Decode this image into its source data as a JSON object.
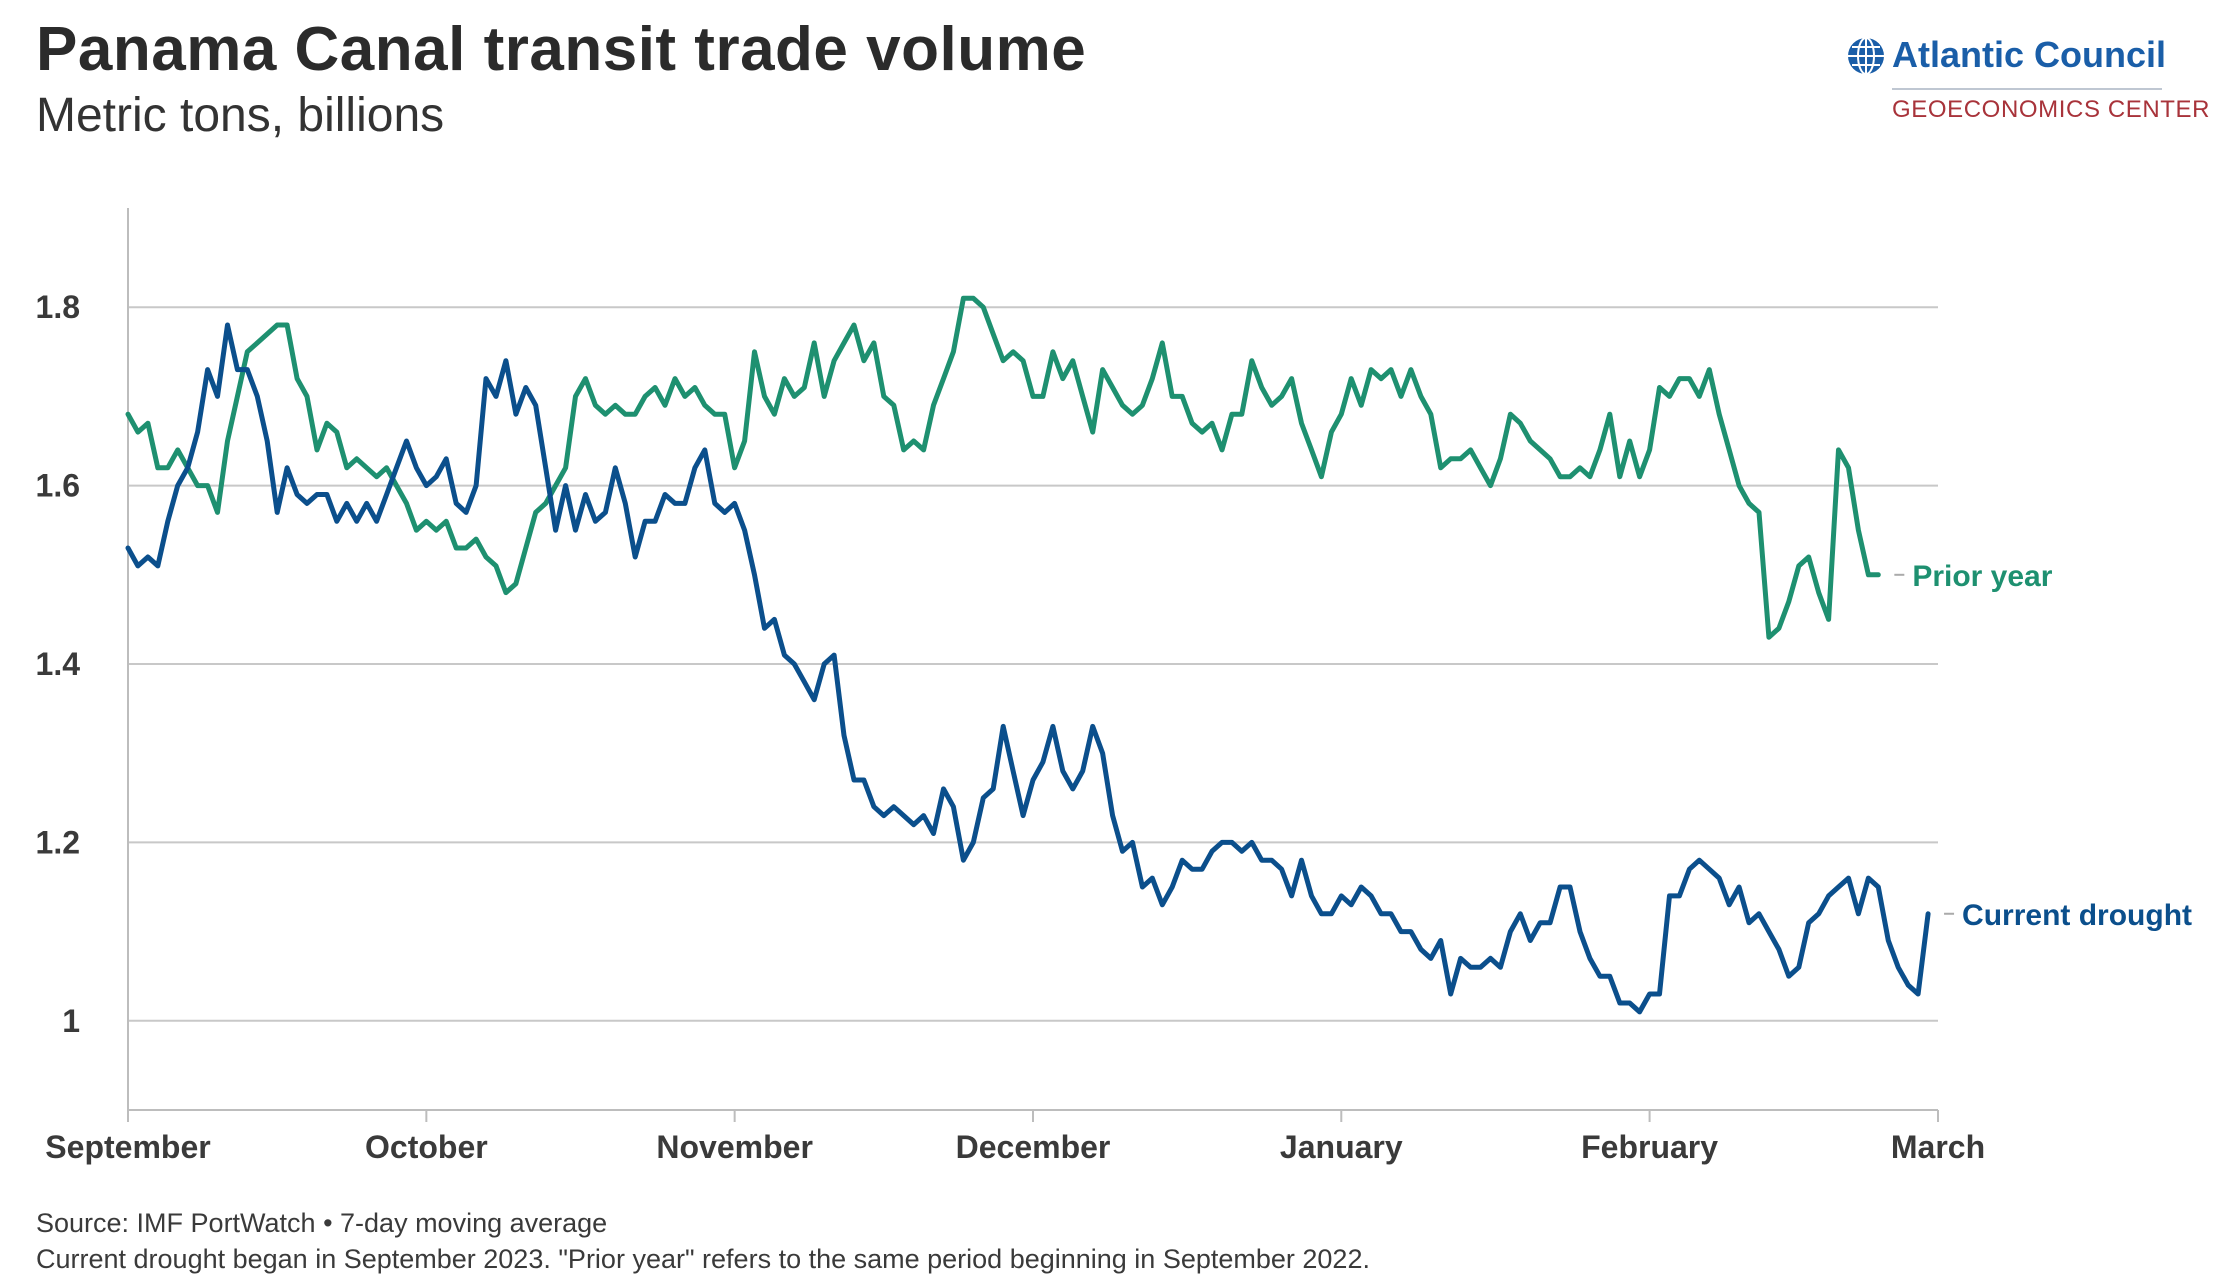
{
  "header": {
    "title": "Panama Canal transit trade volume",
    "subtitle": "Metric tons, billions"
  },
  "logo": {
    "name": "Atlantic Council",
    "center": "GEOECONOMICS CENTER",
    "icon": "globe-icon"
  },
  "footer": {
    "source": "Source: IMF PortWatch • 7-day moving average",
    "note": "Current drought began in September 2023. \"Prior year\" refers to the same period beginning in September 2022."
  },
  "colors": {
    "prior_year": "#1e9070",
    "current_drought": "#0b4f8c",
    "grid": "#c8c8c8",
    "axis": "#bdbdbd"
  },
  "chart_data": {
    "type": "line",
    "title": "Panama Canal transit trade volume",
    "ylabel": "Metric tons, billions",
    "xlabel": "",
    "ylim": [
      0.9,
      1.9
    ],
    "xlim": [
      0,
      182
    ],
    "x_ticks": [
      {
        "label": "September",
        "day": 0
      },
      {
        "label": "October",
        "day": 30
      },
      {
        "label": "November",
        "day": 61
      },
      {
        "label": "December",
        "day": 91
      },
      {
        "label": "January",
        "day": 122
      },
      {
        "label": "February",
        "day": 153
      },
      {
        "label": "March",
        "day": 182
      }
    ],
    "y_ticks": [
      {
        "label": "1",
        "value": 1.0
      },
      {
        "label": "1.2",
        "value": 1.2
      },
      {
        "label": "1.4",
        "value": 1.4
      },
      {
        "label": "1.6",
        "value": 1.6
      },
      {
        "label": "1.8",
        "value": 1.8
      }
    ],
    "grid": true,
    "series": [
      {
        "name": "Prior year",
        "color": "#1e9070",
        "x_start": 0,
        "x_step": 1,
        "values": [
          1.68,
          1.66,
          1.67,
          1.62,
          1.62,
          1.64,
          1.62,
          1.6,
          1.6,
          1.57,
          1.65,
          1.7,
          1.75,
          1.76,
          1.77,
          1.78,
          1.78,
          1.72,
          1.7,
          1.64,
          1.67,
          1.66,
          1.62,
          1.63,
          1.62,
          1.61,
          1.62,
          1.6,
          1.58,
          1.55,
          1.56,
          1.55,
          1.56,
          1.53,
          1.53,
          1.54,
          1.52,
          1.51,
          1.48,
          1.49,
          1.53,
          1.57,
          1.58,
          1.6,
          1.62,
          1.7,
          1.72,
          1.69,
          1.68,
          1.69,
          1.68,
          1.68,
          1.7,
          1.71,
          1.69,
          1.72,
          1.7,
          1.71,
          1.69,
          1.68,
          1.68,
          1.62,
          1.65,
          1.75,
          1.7,
          1.68,
          1.72,
          1.7,
          1.71,
          1.76,
          1.7,
          1.74,
          1.76,
          1.78,
          1.74,
          1.76,
          1.7,
          1.69,
          1.64,
          1.65,
          1.64,
          1.69,
          1.72,
          1.75,
          1.81,
          1.81,
          1.8,
          1.77,
          1.74,
          1.75,
          1.74,
          1.7,
          1.7,
          1.75,
          1.72,
          1.74,
          1.7,
          1.66,
          1.73,
          1.71,
          1.69,
          1.68,
          1.69,
          1.72,
          1.76,
          1.7,
          1.7,
          1.67,
          1.66,
          1.67,
          1.64,
          1.68,
          1.68,
          1.74,
          1.71,
          1.69,
          1.7,
          1.72,
          1.67,
          1.64,
          1.61,
          1.66,
          1.68,
          1.72,
          1.69,
          1.73,
          1.72,
          1.73,
          1.7,
          1.73,
          1.7,
          1.68,
          1.62,
          1.63,
          1.63,
          1.64,
          1.62,
          1.6,
          1.63,
          1.68,
          1.67,
          1.65,
          1.64,
          1.63,
          1.61,
          1.61,
          1.62,
          1.61,
          1.64,
          1.68,
          1.61,
          1.65,
          1.61,
          1.64,
          1.71,
          1.7,
          1.72,
          1.72,
          1.7,
          1.73,
          1.68,
          1.64,
          1.6,
          1.58,
          1.57,
          1.43,
          1.44,
          1.47,
          1.51,
          1.52,
          1.48,
          1.45,
          1.64,
          1.62,
          1.55,
          1.5,
          1.5
        ]
      },
      {
        "name": "Current drought",
        "color": "#0b4f8c",
        "x_start": 0,
        "x_step": 1,
        "values": [
          1.53,
          1.51,
          1.52,
          1.51,
          1.56,
          1.6,
          1.62,
          1.66,
          1.73,
          1.7,
          1.78,
          1.73,
          1.73,
          1.7,
          1.65,
          1.57,
          1.62,
          1.59,
          1.58,
          1.59,
          1.59,
          1.56,
          1.58,
          1.56,
          1.58,
          1.56,
          1.59,
          1.62,
          1.65,
          1.62,
          1.6,
          1.61,
          1.63,
          1.58,
          1.57,
          1.6,
          1.72,
          1.7,
          1.74,
          1.68,
          1.71,
          1.69,
          1.62,
          1.55,
          1.6,
          1.55,
          1.59,
          1.56,
          1.57,
          1.62,
          1.58,
          1.52,
          1.56,
          1.56,
          1.59,
          1.58,
          1.58,
          1.62,
          1.64,
          1.58,
          1.57,
          1.58,
          1.55,
          1.5,
          1.44,
          1.45,
          1.41,
          1.4,
          1.38,
          1.36,
          1.4,
          1.41,
          1.32,
          1.27,
          1.27,
          1.24,
          1.23,
          1.24,
          1.23,
          1.22,
          1.23,
          1.21,
          1.26,
          1.24,
          1.18,
          1.2,
          1.25,
          1.26,
          1.33,
          1.28,
          1.23,
          1.27,
          1.29,
          1.33,
          1.28,
          1.26,
          1.28,
          1.33,
          1.3,
          1.23,
          1.19,
          1.2,
          1.15,
          1.16,
          1.13,
          1.15,
          1.18,
          1.17,
          1.17,
          1.19,
          1.2,
          1.2,
          1.19,
          1.2,
          1.18,
          1.18,
          1.17,
          1.14,
          1.18,
          1.14,
          1.12,
          1.12,
          1.14,
          1.13,
          1.15,
          1.14,
          1.12,
          1.12,
          1.1,
          1.1,
          1.08,
          1.07,
          1.09,
          1.03,
          1.07,
          1.06,
          1.06,
          1.07,
          1.06,
          1.1,
          1.12,
          1.09,
          1.11,
          1.11,
          1.15,
          1.15,
          1.1,
          1.07,
          1.05,
          1.05,
          1.02,
          1.02,
          1.01,
          1.03,
          1.03,
          1.14,
          1.14,
          1.17,
          1.18,
          1.17,
          1.16,
          1.13,
          1.15,
          1.11,
          1.12,
          1.1,
          1.08,
          1.05,
          1.06,
          1.11,
          1.12,
          1.14,
          1.15,
          1.16,
          1.12,
          1.16,
          1.15,
          1.09,
          1.06,
          1.04,
          1.03,
          1.12
        ]
      }
    ]
  }
}
